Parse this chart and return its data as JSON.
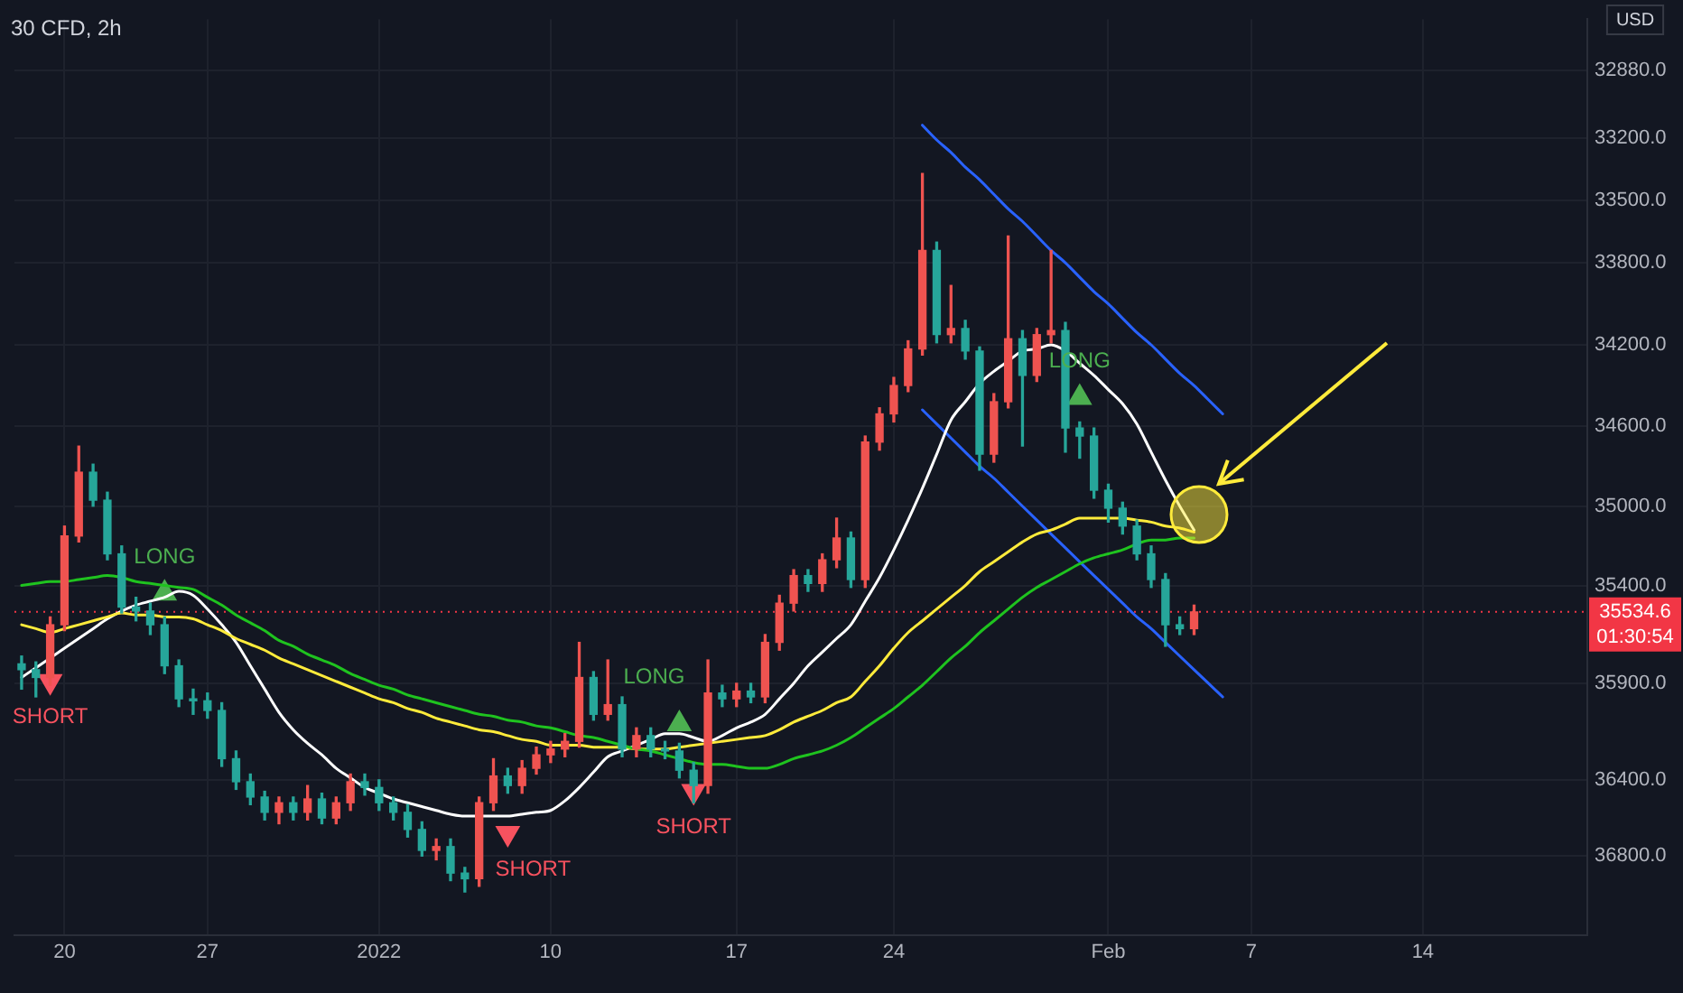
{
  "chart_data": {
    "type": "candlestick",
    "title": "30 CFD, 2h",
    "ylabel": "USD",
    "categories": [
      null,
      null,
      null,
      "20",
      null,
      null,
      null,
      null,
      null,
      null,
      null,
      null,
      null,
      "27",
      null,
      null,
      null,
      null,
      null,
      null,
      null,
      null,
      null,
      null,
      null,
      "2022",
      null,
      null,
      null,
      null,
      null,
      null,
      null,
      null,
      null,
      null,
      null,
      "10",
      null,
      null,
      null,
      null,
      null,
      null,
      null,
      null,
      null,
      null,
      null,
      null,
      "17",
      null,
      null,
      null,
      null,
      null,
      null,
      null,
      null,
      null,
      null,
      "24",
      null,
      null,
      null,
      null,
      null,
      null,
      null,
      null,
      null,
      null,
      null,
      null,
      null,
      null,
      "Feb",
      null,
      null,
      null,
      null,
      null,
      null,
      null,
      null,
      null,
      "7",
      null,
      null,
      null,
      null,
      null,
      null,
      null,
      null,
      null,
      null,
      null,
      "14",
      null,
      null,
      null,
      null,
      null,
      null,
      null,
      null,
      null,
      null,
      null
    ],
    "ohlc": [
      [
        35800,
        35930,
        35760,
        35830
      ],
      [
        35830,
        35970,
        35790,
        35870
      ],
      [
        35870,
        35910,
        35560,
        35600
      ],
      [
        35600,
        35630,
        35100,
        35150
      ],
      [
        35150,
        35180,
        34700,
        34830
      ],
      [
        34830,
        35000,
        34790,
        34970
      ],
      [
        34970,
        35270,
        34930,
        35240
      ],
      [
        35240,
        35540,
        35200,
        35510
      ],
      [
        35510,
        35580,
        35460,
        35530
      ],
      [
        35530,
        35650,
        35490,
        35600
      ],
      [
        35600,
        35850,
        35560,
        35810
      ],
      [
        35810,
        36020,
        35780,
        35980
      ],
      [
        35980,
        36060,
        35930,
        35990
      ],
      [
        35990,
        36080,
        35950,
        36040
      ],
      [
        36040,
        36330,
        36000,
        36290
      ],
      [
        36290,
        36450,
        36250,
        36410
      ],
      [
        36410,
        36530,
        36370,
        36490
      ],
      [
        36490,
        36610,
        36460,
        36570
      ],
      [
        36570,
        36630,
        36490,
        36520
      ],
      [
        36520,
        36610,
        36490,
        36570
      ],
      [
        36570,
        36610,
        36430,
        36500
      ],
      [
        36500,
        36630,
        36470,
        36600
      ],
      [
        36600,
        36630,
        36490,
        36520
      ],
      [
        36520,
        36560,
        36370,
        36410
      ],
      [
        36410,
        36480,
        36370,
        36440
      ],
      [
        36440,
        36560,
        36400,
        36520
      ],
      [
        36520,
        36610,
        36490,
        36570
      ],
      [
        36570,
        36700,
        36530,
        36660
      ],
      [
        36660,
        36800,
        36620,
        36770
      ],
      [
        36770,
        36820,
        36710,
        36750
      ],
      [
        36750,
        36930,
        36710,
        36890
      ],
      [
        36890,
        36990,
        36860,
        36920
      ],
      [
        36920,
        36960,
        36490,
        36520
      ],
      [
        36520,
        36560,
        36290,
        36380
      ],
      [
        36380,
        36470,
        36340,
        36430
      ],
      [
        36430,
        36470,
        36300,
        36340
      ],
      [
        36340,
        36370,
        36230,
        36270
      ],
      [
        36270,
        36310,
        36200,
        36240
      ],
      [
        36240,
        36280,
        36160,
        36200
      ],
      [
        36200,
        36230,
        35690,
        35870
      ],
      [
        35870,
        36090,
        35840,
        36060
      ],
      [
        36060,
        36090,
        35780,
        36010
      ],
      [
        36010,
        36280,
        35970,
        36240
      ],
      [
        36240,
        36280,
        36130,
        36170
      ],
      [
        36170,
        36280,
        36130,
        36240
      ],
      [
        36240,
        36290,
        36200,
        36250
      ],
      [
        36250,
        36390,
        36210,
        36350
      ],
      [
        36350,
        36520,
        36310,
        36430
      ],
      [
        36430,
        36470,
        35780,
        35950
      ],
      [
        35950,
        36020,
        35910,
        35980
      ],
      [
        35980,
        36020,
        35900,
        35940
      ],
      [
        35940,
        36000,
        35900,
        35970
      ],
      [
        35970,
        36000,
        35650,
        35690
      ],
      [
        35690,
        35730,
        35450,
        35490
      ],
      [
        35490,
        35530,
        35320,
        35350
      ],
      [
        35350,
        35430,
        35320,
        35390
      ],
      [
        35390,
        35430,
        35240,
        35270
      ],
      [
        35270,
        35310,
        35060,
        35160
      ],
      [
        35160,
        35410,
        35130,
        35370
      ],
      [
        35370,
        35410,
        34650,
        34680
      ],
      [
        34680,
        34720,
        34510,
        34540
      ],
      [
        34540,
        34580,
        34360,
        34400
      ],
      [
        34400,
        34430,
        34180,
        34220
      ],
      [
        34220,
        34250,
        33370,
        33740
      ],
      [
        33740,
        34190,
        33700,
        34150
      ],
      [
        34150,
        34190,
        33910,
        34120
      ],
      [
        34120,
        34270,
        34080,
        34230
      ],
      [
        34230,
        34820,
        34210,
        34740
      ],
      [
        34740,
        34780,
        34440,
        34480
      ],
      [
        34480,
        34510,
        33670,
        34170
      ],
      [
        34170,
        34700,
        34130,
        34350
      ],
      [
        34350,
        34380,
        34120,
        34150
      ],
      [
        34150,
        34190,
        33740,
        34130
      ],
      [
        34130,
        34730,
        34090,
        34610
      ],
      [
        34610,
        34760,
        34580,
        34650
      ],
      [
        34650,
        34960,
        34610,
        34920
      ],
      [
        34920,
        35080,
        34890,
        35010
      ],
      [
        35010,
        35140,
        34980,
        35100
      ],
      [
        35100,
        35270,
        35070,
        35240
      ],
      [
        35240,
        35410,
        35200,
        35370
      ],
      [
        35370,
        35710,
        35340,
        35600
      ],
      [
        35600,
        35650,
        35560,
        35620
      ],
      [
        35620,
        35650,
        35500,
        35534.6
      ],
      null,
      null,
      null,
      null,
      null,
      null,
      null,
      null,
      null,
      null,
      null,
      null,
      null,
      null,
      null,
      null,
      null,
      null,
      null,
      null,
      null,
      null,
      null,
      null,
      null,
      null,
      null
    ],
    "colors": [
      "#26a69a",
      "#26a69a",
      "#ef5350",
      "#ef5350",
      "#ef5350",
      "#26a69a",
      "#26a69a",
      "#26a69a",
      "#26a69a",
      "#26a69a",
      "#26a69a",
      "#26a69a",
      "#26a69a",
      "#26a69a",
      "#26a69a",
      "#26a69a",
      "#26a69a",
      "#26a69a",
      "#ef5350",
      "#26a69a",
      "#ef5350",
      "#26a69a",
      "#ef5350",
      "#ef5350",
      "#26a69a",
      "#26a69a",
      "#26a69a",
      "#26a69a",
      "#26a69a",
      "#ef5350",
      "#26a69a",
      "#26a69a",
      "#ef5350",
      "#ef5350",
      "#26a69a",
      "#ef5350",
      "#ef5350",
      "#ef5350",
      "#ef5350",
      "#ef5350",
      "#26a69a",
      "#ef5350",
      "#26a69a",
      "#ef5350",
      "#26a69a",
      "#26a69a",
      "#26a69a",
      "#26a69a",
      "#ef5350",
      "#26a69a",
      "#ef5350",
      "#26a69a",
      "#ef5350",
      "#ef5350",
      "#ef5350",
      "#26a69a",
      "#ef5350",
      "#ef5350",
      "#26a69a",
      "#ef5350",
      "#ef5350",
      "#ef5350",
      "#ef5350",
      "#ef5350",
      "#26a69a",
      "#ef5350",
      "#26a69a",
      "#26a69a",
      "#ef5350",
      "#ef5350",
      "#26a69a",
      "#ef5350",
      "#ef5350",
      "#26a69a",
      "#26a69a",
      "#26a69a",
      "#26a69a",
      "#26a69a",
      "#26a69a",
      "#26a69a",
      "#26a69a",
      "#26a69a",
      "#ef5350",
      null,
      null,
      null,
      null,
      null,
      null,
      null,
      null,
      null,
      null,
      null,
      null,
      null,
      null,
      null,
      null,
      null,
      null,
      null,
      null,
      null,
      null,
      null,
      null,
      null,
      null,
      null
    ],
    "series": [
      {
        "type": "line",
        "color": "#1fc31f",
        "values": [
          35400,
          35390,
          35380,
          35380,
          35370,
          35360,
          35350,
          35360,
          35380,
          35390,
          35400,
          35410,
          35420,
          35460,
          35500,
          35550,
          35590,
          35630,
          35680,
          35710,
          35750,
          35780,
          35810,
          35850,
          35880,
          35910,
          35930,
          35960,
          35980,
          36000,
          36020,
          36040,
          36060,
          36070,
          36090,
          36100,
          36120,
          36130,
          36150,
          36170,
          36180,
          36200,
          36220,
          36240,
          36250,
          36270,
          36290,
          36310,
          36320,
          36320,
          36330,
          36340,
          36340,
          36320,
          36290,
          36270,
          36250,
          36220,
          36180,
          36130,
          36080,
          36030,
          35970,
          35910,
          35840,
          35770,
          35710,
          35640,
          35580,
          35520,
          35460,
          35410,
          35370,
          35330,
          35290,
          35260,
          35240,
          35220,
          35190,
          35170,
          35170,
          35160,
          35160,
          null,
          null,
          null,
          null,
          null,
          null,
          null,
          null,
          null,
          null,
          null,
          null,
          null,
          null,
          null,
          null,
          null,
          null,
          null,
          null,
          null,
          null,
          null,
          null,
          null,
          null,
          null
        ]
      },
      {
        "type": "line",
        "color": "#ffeb3b",
        "values": [
          35600,
          35620,
          35640,
          35620,
          35600,
          35580,
          35560,
          35540,
          35550,
          35550,
          35560,
          35560,
          35570,
          35600,
          35630,
          35670,
          35700,
          35730,
          35770,
          35800,
          35830,
          35860,
          35890,
          35920,
          35950,
          35980,
          36000,
          36030,
          36050,
          36080,
          36100,
          36120,
          36140,
          36150,
          36170,
          36190,
          36200,
          36220,
          36220,
          36220,
          36230,
          36230,
          36230,
          36240,
          36240,
          36240,
          36230,
          36220,
          36210,
          36200,
          36190,
          36180,
          36170,
          36140,
          36100,
          36070,
          36040,
          36000,
          35970,
          35890,
          35810,
          35720,
          35640,
          35580,
          35520,
          35460,
          35400,
          35330,
          35280,
          35230,
          35180,
          35140,
          35120,
          35090,
          35060,
          35060,
          35060,
          35060,
          35070,
          35080,
          35100,
          35110,
          35130,
          null,
          null,
          null,
          null,
          null,
          null,
          null,
          null,
          null,
          null,
          null,
          null,
          null,
          null,
          null,
          null,
          null,
          null,
          null,
          null,
          null,
          null,
          null,
          null,
          null,
          null,
          null
        ]
      },
      {
        "type": "line",
        "color": "#ffffff",
        "values": [
          35870,
          35820,
          35770,
          35720,
          35670,
          35620,
          35570,
          35530,
          35500,
          35480,
          35460,
          35430,
          35450,
          35520,
          35600,
          35690,
          35810,
          35930,
          36050,
          36140,
          36210,
          36270,
          36340,
          36390,
          36440,
          36470,
          36500,
          36520,
          36540,
          36560,
          36580,
          36590,
          36590,
          36590,
          36590,
          36580,
          36570,
          36560,
          36510,
          36440,
          36360,
          36280,
          36250,
          36220,
          36190,
          36160,
          36160,
          36180,
          36200,
          36170,
          36130,
          36100,
          36060,
          35980,
          35900,
          35810,
          35740,
          35670,
          35600,
          35480,
          35360,
          35220,
          35070,
          34910,
          34740,
          34570,
          34480,
          34390,
          34330,
          34280,
          34230,
          34220,
          34200,
          34230,
          34290,
          34350,
          34420,
          34490,
          34590,
          34730,
          34870,
          35000,
          35120,
          null,
          null,
          null,
          null,
          null,
          null,
          null,
          null,
          null,
          null,
          null,
          null,
          null,
          null,
          null,
          null,
          null,
          null,
          null,
          null,
          null,
          null,
          null,
          null,
          null,
          null,
          null
        ]
      },
      {
        "type": "line",
        "color": "#2962ff",
        "values": [
          null,
          null,
          null,
          null,
          null,
          null,
          null,
          null,
          null,
          null,
          null,
          null,
          null,
          null,
          null,
          null,
          null,
          null,
          null,
          null,
          null,
          null,
          null,
          null,
          null,
          null,
          null,
          null,
          null,
          null,
          null,
          null,
          null,
          null,
          null,
          null,
          null,
          null,
          null,
          null,
          null,
          null,
          null,
          null,
          null,
          null,
          null,
          null,
          null,
          null,
          null,
          null,
          null,
          null,
          null,
          null,
          null,
          null,
          null,
          null,
          null,
          null,
          null,
          33140,
          33210,
          33270,
          33340,
          33400,
          33470,
          33540,
          33600,
          33670,
          33740,
          33800,
          33870,
          33940,
          34000,
          34070,
          34140,
          34200,
          34270,
          34340,
          34400,
          34470,
          34540,
          null,
          null,
          null,
          null,
          null,
          null,
          null,
          null,
          null,
          null,
          null,
          null,
          null,
          null,
          null,
          null,
          null,
          null,
          null,
          null,
          null,
          null,
          null,
          null,
          null
        ]
      },
      {
        "type": "line",
        "color": "#2962ff",
        "values": [
          null,
          null,
          null,
          null,
          null,
          null,
          null,
          null,
          null,
          null,
          null,
          null,
          null,
          null,
          null,
          null,
          null,
          null,
          null,
          null,
          null,
          null,
          null,
          null,
          null,
          null,
          null,
          null,
          null,
          null,
          null,
          null,
          null,
          null,
          null,
          null,
          null,
          null,
          null,
          null,
          null,
          null,
          null,
          null,
          null,
          null,
          null,
          null,
          null,
          null,
          null,
          null,
          null,
          null,
          null,
          null,
          null,
          null,
          null,
          null,
          null,
          null,
          null,
          34520,
          34590,
          34660,
          34730,
          34800,
          34860,
          34930,
          35000,
          35070,
          35140,
          35210,
          35280,
          35350,
          35420,
          35490,
          35560,
          35620,
          35690,
          35760,
          35830,
          35900,
          35970,
          null,
          null,
          null,
          null,
          null,
          null,
          null,
          null,
          null,
          null,
          null,
          null,
          null,
          null,
          null,
          null,
          null,
          null,
          null,
          null,
          null,
          null,
          null,
          null,
          null
        ]
      },
      {
        "type": "scatter",
        "name": "LONG",
        "color": "#4caf50",
        "marker": "triangle",
        "values": [
          null,
          null,
          null,
          null,
          null,
          null,
          null,
          null,
          null,
          null,
          35440,
          null,
          null,
          null,
          null,
          null,
          null,
          null,
          null,
          null,
          null,
          null,
          null,
          null,
          null,
          null,
          null,
          null,
          null,
          null,
          null,
          null,
          null,
          null,
          null,
          null,
          null,
          null,
          null,
          null,
          null,
          null,
          null,
          null,
          null,
          null,
          36110,
          null,
          null,
          null,
          null,
          null,
          null,
          null,
          null,
          null,
          null,
          null,
          null,
          null,
          null,
          null,
          null,
          null,
          null,
          null,
          null,
          null,
          null,
          null,
          null,
          null,
          null,
          null,
          34460,
          null,
          null,
          null,
          null,
          null,
          null,
          null,
          null,
          null,
          null,
          null,
          null,
          null,
          null,
          null,
          null,
          null,
          null,
          null,
          null,
          null,
          null,
          null,
          null,
          null,
          null,
          null,
          null,
          null,
          null,
          null,
          null,
          null,
          null,
          null
        ]
      },
      {
        "type": "scatter",
        "name": "SHORT",
        "color": "#f7525f",
        "marker": "triangle-down",
        "values": [
          null,
          null,
          35890,
          null,
          null,
          null,
          null,
          null,
          null,
          null,
          null,
          null,
          null,
          null,
          null,
          null,
          null,
          null,
          null,
          null,
          null,
          null,
          null,
          null,
          null,
          null,
          null,
          null,
          null,
          null,
          null,
          null,
          null,
          null,
          36680,
          null,
          null,
          null,
          null,
          null,
          null,
          null,
          null,
          null,
          null,
          null,
          null,
          36460,
          null,
          null,
          null,
          null,
          null,
          null,
          null,
          null,
          null,
          null,
          null,
          null,
          null,
          null,
          null,
          null,
          null,
          null,
          null,
          null,
          null,
          null,
          null,
          null,
          null,
          null,
          null,
          null,
          null,
          null,
          null,
          null,
          null,
          null,
          null,
          null,
          null,
          null,
          null,
          null,
          null,
          null,
          null,
          null,
          null,
          null,
          null,
          null,
          null,
          null,
          null,
          null,
          null,
          null,
          null,
          null,
          null,
          null,
          null,
          null,
          null,
          null
        ]
      }
    ],
    "ylim": [
      37220,
      32640
    ],
    "yticks": [
      {
        "value": 32880,
        "label": "32880.0"
      },
      {
        "value": 33200,
        "label": "33200.0"
      },
      {
        "value": 33500,
        "label": "33500.0"
      },
      {
        "value": 33800,
        "label": "33800.0"
      },
      {
        "value": 34200,
        "label": "34200.0"
      },
      {
        "value": 34600,
        "label": "34600.0"
      },
      {
        "value": 35000,
        "label": "35000.0"
      },
      {
        "value": 35400,
        "label": "35400.0"
      },
      {
        "value": 35900,
        "label": "35900.0"
      },
      {
        "value": 36400,
        "label": "36400.0"
      },
      {
        "value": 36800,
        "label": "36800.0"
      }
    ],
    "log": "y",
    "grid": true,
    "legend": false,
    "ref_lines": [
      {
        "axis": "y",
        "value": 35534.6,
        "label": "35534.6",
        "color": "#f23645",
        "line_style": "dotted"
      }
    ],
    "annotations": [
      "01:30:54"
    ]
  }
}
